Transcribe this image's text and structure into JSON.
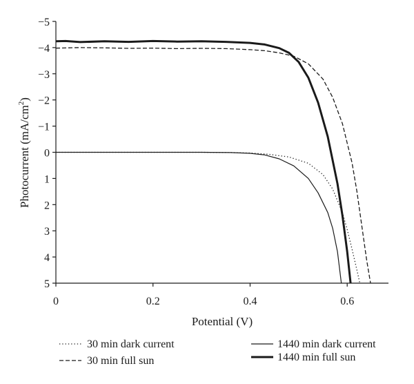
{
  "chart_data": {
    "type": "line",
    "xlabel": "Potential (V)",
    "ylabel_main": "Photocurrent (mA/cm",
    "ylabel_sup": "2",
    "ylabel_close": ")",
    "xlim": [
      0,
      0.685
    ],
    "ylim": [
      5,
      -5
    ],
    "x_ticks": [
      {
        "value": 0,
        "label": "0"
      },
      {
        "value": 0.2,
        "label": "0.2"
      },
      {
        "value": 0.4,
        "label": "0.4"
      },
      {
        "value": 0.6,
        "label": "0.6"
      }
    ],
    "y_ticks": [
      {
        "value": -5,
        "label": "−5"
      },
      {
        "value": -4,
        "label": "−4"
      },
      {
        "value": -3,
        "label": "−3"
      },
      {
        "value": -2,
        "label": "−2"
      },
      {
        "value": -1,
        "label": "−1"
      },
      {
        "value": 0,
        "label": "0"
      },
      {
        "value": 1,
        "label": "1"
      },
      {
        "value": 2,
        "label": "2"
      },
      {
        "value": 3,
        "label": "3"
      },
      {
        "value": 4,
        "label": "4"
      },
      {
        "value": 5,
        "label": "5"
      }
    ],
    "series": [
      {
        "name": "30 min dark current",
        "style": "dotted",
        "color": "#1a1a1a",
        "points": [
          [
            0,
            0
          ],
          [
            0.3,
            0
          ],
          [
            0.36,
            0.01
          ],
          [
            0.4,
            0.03
          ],
          [
            0.44,
            0.08
          ],
          [
            0.48,
            0.18
          ],
          [
            0.52,
            0.42
          ],
          [
            0.55,
            0.85
          ],
          [
            0.57,
            1.4
          ],
          [
            0.59,
            2.3
          ],
          [
            0.6,
            2.95
          ],
          [
            0.61,
            3.7
          ],
          [
            0.62,
            4.5
          ],
          [
            0.626,
            5.0
          ]
        ]
      },
      {
        "name": "30 min full sun",
        "style": "dashed",
        "color": "#1a1a1a",
        "points": [
          [
            0,
            -3.98
          ],
          [
            0.05,
            -4.0
          ],
          [
            0.1,
            -3.99
          ],
          [
            0.15,
            -3.97
          ],
          [
            0.2,
            -3.98
          ],
          [
            0.25,
            -3.96
          ],
          [
            0.3,
            -3.97
          ],
          [
            0.35,
            -3.96
          ],
          [
            0.4,
            -3.92
          ],
          [
            0.43,
            -3.88
          ],
          [
            0.46,
            -3.8
          ],
          [
            0.49,
            -3.67
          ],
          [
            0.52,
            -3.38
          ],
          [
            0.55,
            -2.8
          ],
          [
            0.57,
            -2.1
          ],
          [
            0.59,
            -1.1
          ],
          [
            0.61,
            0.4
          ],
          [
            0.62,
            1.5
          ],
          [
            0.63,
            2.8
          ],
          [
            0.64,
            4.1
          ],
          [
            0.648,
            5.0
          ]
        ]
      },
      {
        "name": "1440 min dark current",
        "style": "thin-solid",
        "color": "#1a1a1a",
        "points": [
          [
            0,
            0
          ],
          [
            0.3,
            0
          ],
          [
            0.36,
            0.01
          ],
          [
            0.4,
            0.04
          ],
          [
            0.43,
            0.1
          ],
          [
            0.46,
            0.25
          ],
          [
            0.49,
            0.52
          ],
          [
            0.52,
            1.0
          ],
          [
            0.54,
            1.55
          ],
          [
            0.56,
            2.3
          ],
          [
            0.57,
            2.9
          ],
          [
            0.58,
            3.8
          ],
          [
            0.588,
            5.0
          ]
        ]
      },
      {
        "name": "1440 min full sun",
        "style": "thick-solid",
        "color": "#1a1a1a",
        "points": [
          [
            0,
            -4.24
          ],
          [
            0.02,
            -4.25
          ],
          [
            0.05,
            -4.21
          ],
          [
            0.1,
            -4.24
          ],
          [
            0.15,
            -4.22
          ],
          [
            0.2,
            -4.25
          ],
          [
            0.25,
            -4.23
          ],
          [
            0.3,
            -4.24
          ],
          [
            0.35,
            -4.22
          ],
          [
            0.4,
            -4.18
          ],
          [
            0.43,
            -4.12
          ],
          [
            0.46,
            -3.98
          ],
          [
            0.48,
            -3.8
          ],
          [
            0.5,
            -3.45
          ],
          [
            0.52,
            -2.85
          ],
          [
            0.54,
            -1.9
          ],
          [
            0.56,
            -0.6
          ],
          [
            0.58,
            1.2
          ],
          [
            0.59,
            2.4
          ],
          [
            0.6,
            3.8
          ],
          [
            0.607,
            5.0
          ]
        ]
      }
    ],
    "legend": {
      "placement": "bottom",
      "entries": [
        {
          "label": "30 min dark current",
          "style": "dotted"
        },
        {
          "label": "30 min full sun",
          "style": "dashed"
        },
        {
          "label": "1440 min dark current",
          "style": "thin-solid"
        },
        {
          "label": "1440 min full sun",
          "style": "thick-solid"
        }
      ]
    }
  }
}
